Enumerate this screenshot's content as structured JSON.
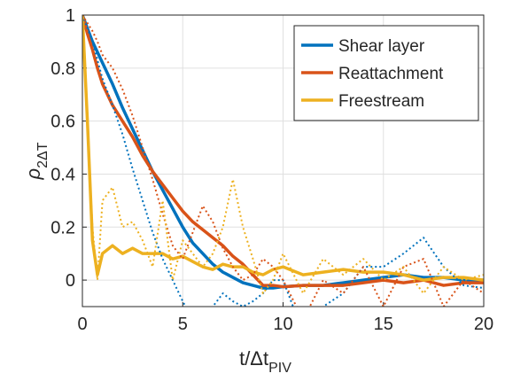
{
  "chart_data": {
    "type": "line",
    "x": [
      0,
      0.25,
      0.5,
      0.75,
      1,
      1.5,
      2,
      2.5,
      3,
      3.5,
      4,
      4.5,
      5,
      5.5,
      6,
      6.5,
      7,
      7.5,
      8,
      8.5,
      9,
      9.5,
      10,
      11,
      12,
      13,
      14,
      15,
      16,
      17,
      18,
      19,
      20
    ],
    "xlabel": {
      "text": "t/Δt",
      "subscript": "PIV"
    },
    "ylabel": {
      "text": "ρ",
      "subscript": "2ΔT"
    },
    "xlim": [
      0,
      20
    ],
    "xticks": [
      0,
      5,
      10,
      15,
      20
    ],
    "ylim": [
      -0.1,
      1
    ],
    "yticks": [
      0,
      0.2,
      0.4,
      0.6,
      0.8,
      1
    ],
    "grid": true,
    "legend": "top-right",
    "series": [
      {
        "name": "Shear layer",
        "color": "#0072bd",
        "dash": "solid",
        "values": [
          1,
          0.95,
          0.9,
          0.86,
          0.82,
          0.74,
          0.65,
          0.57,
          0.49,
          0.41,
          0.34,
          0.27,
          0.2,
          0.14,
          0.1,
          0.06,
          0.03,
          0.01,
          -0.01,
          -0.02,
          -0.03,
          -0.03,
          -0.025,
          -0.02,
          -0.02,
          -0.01,
          0,
          0.01,
          0.02,
          0.01,
          0.01,
          0,
          0
        ]
      },
      {
        "name": "Reattachment",
        "color": "#d95319",
        "dash": "solid",
        "values": [
          1,
          0.93,
          0.87,
          0.8,
          0.74,
          0.66,
          0.6,
          0.54,
          0.47,
          0.41,
          0.36,
          0.31,
          0.26,
          0.22,
          0.19,
          0.16,
          0.13,
          0.09,
          0.06,
          0.02,
          -0.02,
          -0.02,
          -0.025,
          -0.02,
          -0.02,
          -0.02,
          -0.01,
          0,
          -0.01,
          0,
          -0.02,
          -0.01,
          -0.01
        ]
      },
      {
        "name": "Freestream",
        "color": "#edb120",
        "dash": "solid",
        "values": [
          1,
          0.6,
          0.15,
          0.02,
          0.1,
          0.13,
          0.1,
          0.12,
          0.1,
          0.1,
          0.1,
          0.08,
          0.09,
          0.07,
          0.05,
          0.04,
          0.06,
          0.05,
          0.05,
          0.03,
          0.02,
          0.04,
          0.05,
          0.02,
          0.03,
          0.04,
          0.03,
          0.03,
          0.02,
          0,
          0.01,
          0.01,
          0
        ]
      },
      {
        "color": "#0072bd",
        "dash": "dotted",
        "values": [
          1,
          0.95,
          0.9,
          0.83,
          0.76,
          0.66,
          0.55,
          0.42,
          0.3,
          0.18,
          0.08,
          0,
          -0.08,
          -0.15,
          -0.2,
          -0.1,
          -0.05,
          -0.08,
          -0.1,
          -0.08,
          -0.05,
          0,
          0,
          -0.2,
          -0.1,
          -0.05,
          0.05,
          0.05,
          0.1,
          0.16,
          0.05,
          -0.02,
          -0.03
        ]
      },
      {
        "color": "#d95319",
        "dash": "dotted",
        "values": [
          1,
          0.97,
          0.94,
          0.9,
          0.85,
          0.8,
          0.72,
          0.62,
          0.5,
          0.38,
          0.25,
          0.13,
          0.08,
          0.18,
          0.28,
          0.22,
          0.12,
          0.05,
          0,
          0.02,
          0.08,
          0.05,
          0,
          -0.15,
          0,
          -0.05,
          0.05,
          -0.1,
          0.05,
          0.08,
          -0.1,
          0,
          -0.05
        ]
      },
      {
        "color": "#edb120",
        "dash": "dotted",
        "values": [
          1,
          0.6,
          0.2,
          0,
          0.3,
          0.35,
          0.2,
          0.22,
          0.15,
          0.05,
          0.3,
          0,
          0.15,
          0.1,
          0.05,
          0.1,
          0.2,
          0.38,
          0.2,
          0.08,
          -0.05,
          0,
          0.1,
          -0.05,
          0.08,
          0.02,
          0.08,
          0,
          0.05,
          -0.05,
          0.05,
          0,
          0.02
        ]
      }
    ]
  }
}
